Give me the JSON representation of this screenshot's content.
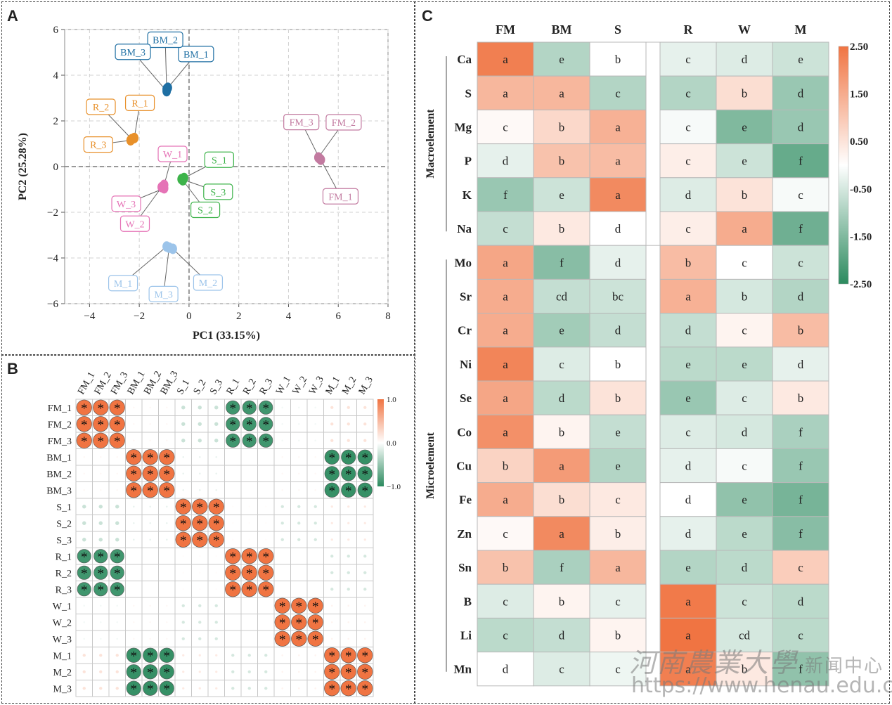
{
  "panels": {
    "a": "A",
    "b": "B",
    "c": "C"
  },
  "colors": {
    "BM": "#1f6fa3",
    "R": "#e8902a",
    "W": "#e573b6",
    "S": "#3db34a",
    "FM": "#c27aa0",
    "M": "#9cc4ea",
    "high": "#f07442",
    "low": "#2b8a5e"
  },
  "chart_data": [
    {
      "type": "scatter",
      "xlabel": "PC1 (33.15%)",
      "ylabel": "PC2 (25.28%)",
      "xlim": [
        -5,
        8
      ],
      "ylim": [
        -6,
        6
      ],
      "xticks": [
        -4,
        -2,
        0,
        2,
        4,
        6,
        8
      ],
      "yticks": [
        -6,
        -4,
        -2,
        0,
        2,
        4,
        6
      ],
      "xtick_labels": [
        "−4",
        "−2",
        "0",
        "2",
        "4",
        "6",
        "8"
      ],
      "ytick_labels": [
        "−6",
        "−4",
        "−2",
        "0",
        "2",
        "4",
        "6"
      ],
      "grid": true,
      "groups": [
        {
          "name": "BM",
          "color": "#1f6fa3",
          "points": [
            {
              "label": "BM_1",
              "x": -0.85,
              "y": 3.45
            },
            {
              "label": "BM_2",
              "x": -0.9,
              "y": 3.4
            },
            {
              "label": "BM_3",
              "x": -0.9,
              "y": 3.3
            }
          ]
        },
        {
          "name": "R",
          "color": "#e8902a",
          "points": [
            {
              "label": "R_1",
              "x": -2.2,
              "y": 1.25
            },
            {
              "label": "R_2",
              "x": -2.3,
              "y": 1.2
            },
            {
              "label": "R_3",
              "x": -2.35,
              "y": 1.15
            }
          ]
        },
        {
          "name": "W",
          "color": "#e573b6",
          "points": [
            {
              "label": "W_1",
              "x": -1.0,
              "y": -0.8
            },
            {
              "label": "W_2",
              "x": -1.1,
              "y": -0.9
            },
            {
              "label": "W_3",
              "x": -1.0,
              "y": -0.95
            }
          ]
        },
        {
          "name": "S",
          "color": "#3db34a",
          "points": [
            {
              "label": "S_1",
              "x": -0.2,
              "y": -0.5
            },
            {
              "label": "S_2",
              "x": -0.25,
              "y": -0.6
            },
            {
              "label": "S_3",
              "x": -0.3,
              "y": -0.55
            }
          ]
        },
        {
          "name": "FM",
          "color": "#c27aa0",
          "points": [
            {
              "label": "FM_1",
              "x": 5.3,
              "y": 0.3
            },
            {
              "label": "FM_2",
              "x": 5.2,
              "y": 0.4
            },
            {
              "label": "FM_3",
              "x": 5.25,
              "y": 0.35
            }
          ]
        },
        {
          "name": "M",
          "color": "#9cc4ea",
          "points": [
            {
              "label": "M_1",
              "x": -0.9,
              "y": -3.5
            },
            {
              "label": "M_2",
              "x": -0.65,
              "y": -3.6
            },
            {
              "label": "M_3",
              "x": -0.8,
              "y": -3.55
            }
          ]
        }
      ]
    },
    {
      "type": "heatmap",
      "rows": [
        "FM_1",
        "FM_2",
        "FM_3",
        "BM_1",
        "BM_2",
        "BM_3",
        "S_1",
        "S_2",
        "S_3",
        "R_1",
        "R_2",
        "R_3",
        "W_1",
        "W_2",
        "W_3",
        "M_1",
        "M_2",
        "M_3"
      ],
      "columns": [
        "FM_1",
        "FM_2",
        "FM_3",
        "BM_1",
        "BM_2",
        "BM_3",
        "S_1",
        "S_2",
        "S_3",
        "R_1",
        "R_2",
        "R_3",
        "W_1",
        "W_2",
        "W_3",
        "M_1",
        "M_2",
        "M_3"
      ],
      "group_correlations": {
        "FM": {
          "FM": 1.0,
          "BM": 0.05,
          "S": -0.25,
          "R": -0.9,
          "W": -0.05,
          "M": 0.2
        },
        "BM": {
          "FM": 0.05,
          "BM": 1.0,
          "S": -0.1,
          "R": 0.0,
          "W": 0.05,
          "M": -0.95
        },
        "S": {
          "FM": -0.25,
          "BM": -0.1,
          "S": 1.0,
          "R": 0.02,
          "W": -0.2,
          "M": 0.15
        },
        "R": {
          "FM": -0.9,
          "BM": 0.0,
          "S": 0.02,
          "R": 1.0,
          "W": 0.0,
          "M": -0.2
        },
        "W": {
          "FM": -0.05,
          "BM": 0.05,
          "S": -0.2,
          "R": 0.0,
          "W": 1.0,
          "M": 0.08
        },
        "M": {
          "FM": 0.2,
          "BM": -0.95,
          "S": 0.15,
          "R": -0.2,
          "W": 0.08,
          "M": 1.0
        }
      },
      "significance_mark": "*",
      "colorbar_ticks": [
        "1.0",
        "0.0",
        "−1.0"
      ],
      "colorbar_range": [
        -1.0,
        1.0
      ]
    },
    {
      "type": "heatmap",
      "columns": [
        "FM",
        "BM",
        "S",
        "R",
        "W",
        "M"
      ],
      "rows": [
        "Ca",
        "S",
        "Mg",
        "P",
        "K",
        "Na",
        "Mo",
        "Sr",
        "Cr",
        "Ni",
        "Se",
        "Co",
        "Cu",
        "Fe",
        "Zn",
        "Sn",
        "B",
        "Li",
        "Mn"
      ],
      "groups": [
        {
          "name": "Macroelement",
          "rows": [
            "Ca",
            "S",
            "Mg",
            "P",
            "K",
            "Na"
          ]
        },
        {
          "name": "Microelement",
          "rows": [
            "Mo",
            "Sr",
            "Cr",
            "Ni",
            "Se",
            "Co",
            "Cu",
            "Fe",
            "Zn",
            "Sn",
            "B",
            "Li",
            "Mn"
          ]
        }
      ],
      "letters": [
        [
          "a",
          "e",
          "b",
          "c",
          "d",
          "e"
        ],
        [
          "a",
          "a",
          "c",
          "c",
          "b",
          "d"
        ],
        [
          "c",
          "b",
          "a",
          "c",
          "e",
          "d"
        ],
        [
          "d",
          "b",
          "a",
          "c",
          "e",
          "f"
        ],
        [
          "f",
          "e",
          "a",
          "d",
          "b",
          "c"
        ],
        [
          "c",
          "b",
          "d",
          "c",
          "a",
          "f"
        ],
        [
          "a",
          "f",
          "d",
          "b",
          "c",
          "c"
        ],
        [
          "a",
          "cd",
          "bc",
          "a",
          "b",
          "d"
        ],
        [
          "a",
          "e",
          "d",
          "d",
          "c",
          "b"
        ],
        [
          "a",
          "c",
          "b",
          "e",
          "e",
          "d"
        ],
        [
          "a",
          "d",
          "b",
          "e",
          "c",
          "b"
        ],
        [
          "a",
          "b",
          "e",
          "c",
          "d",
          "f"
        ],
        [
          "b",
          "a",
          "e",
          "d",
          "c",
          "f"
        ],
        [
          "a",
          "b",
          "c",
          "d",
          "e",
          "f"
        ],
        [
          "c",
          "a",
          "b",
          "d",
          "e",
          "f"
        ],
        [
          "b",
          "f",
          "a",
          "e",
          "d",
          "c"
        ],
        [
          "c",
          "b",
          "c",
          "a",
          "c",
          "d"
        ],
        [
          "c",
          "d",
          "b",
          "a",
          "cd",
          "c"
        ],
        [
          "d",
          "c",
          "c",
          "a",
          "b",
          "f"
        ]
      ],
      "values": [
        [
          2.3,
          -0.9,
          0.0,
          -0.3,
          -0.4,
          -0.6
        ],
        [
          1.3,
          1.3,
          -0.9,
          -0.9,
          0.6,
          -1.2
        ],
        [
          0.1,
          0.7,
          1.4,
          -0.1,
          -1.5,
          -1.2
        ],
        [
          -0.3,
          1.1,
          1.2,
          0.3,
          -0.6,
          -1.8
        ],
        [
          -1.2,
          -0.6,
          2.1,
          -0.4,
          0.5,
          -0.1
        ],
        [
          -0.7,
          0.4,
          0.0,
          0.3,
          1.5,
          -1.7
        ],
        [
          1.6,
          -1.4,
          -0.3,
          1.2,
          0.0,
          -0.6
        ],
        [
          1.5,
          -0.7,
          -0.6,
          1.4,
          -0.5,
          -0.9
        ],
        [
          1.5,
          -1.1,
          -0.7,
          -0.7,
          0.2,
          1.2
        ],
        [
          2.2,
          -0.4,
          0.0,
          -0.8,
          -0.8,
          -0.3
        ],
        [
          1.6,
          -0.8,
          0.5,
          -1.2,
          -0.4,
          0.4
        ],
        [
          2.0,
          0.2,
          -0.7,
          -0.4,
          -0.5,
          -1.0
        ],
        [
          0.8,
          1.8,
          -0.9,
          -0.3,
          -0.1,
          -1.2
        ],
        [
          1.5,
          0.6,
          0.4,
          0.0,
          -1.3,
          -1.6
        ],
        [
          0.1,
          2.1,
          0.3,
          -0.3,
          -0.8,
          -1.4
        ],
        [
          1.1,
          -1.0,
          1.3,
          -0.9,
          -0.8,
          0.9
        ],
        [
          -0.4,
          0.2,
          -0.3,
          2.4,
          -0.6,
          -0.8
        ],
        [
          -0.8,
          -0.7,
          0.2,
          2.5,
          -0.5,
          -0.8
        ],
        [
          0.0,
          -0.4,
          -0.2,
          2.3,
          0.4,
          -1.3
        ]
      ],
      "colorbar_ticks": [
        "2.50",
        "1.50",
        "0.50",
        "-0.50",
        "-1.50",
        "-2.50"
      ],
      "colorbar_range": [
        -2.5,
        2.5
      ]
    }
  ],
  "watermark": {
    "chinese": "河南農業大學",
    "sub": "新闻中心",
    "url": "https://www.henau.edu.cn"
  }
}
